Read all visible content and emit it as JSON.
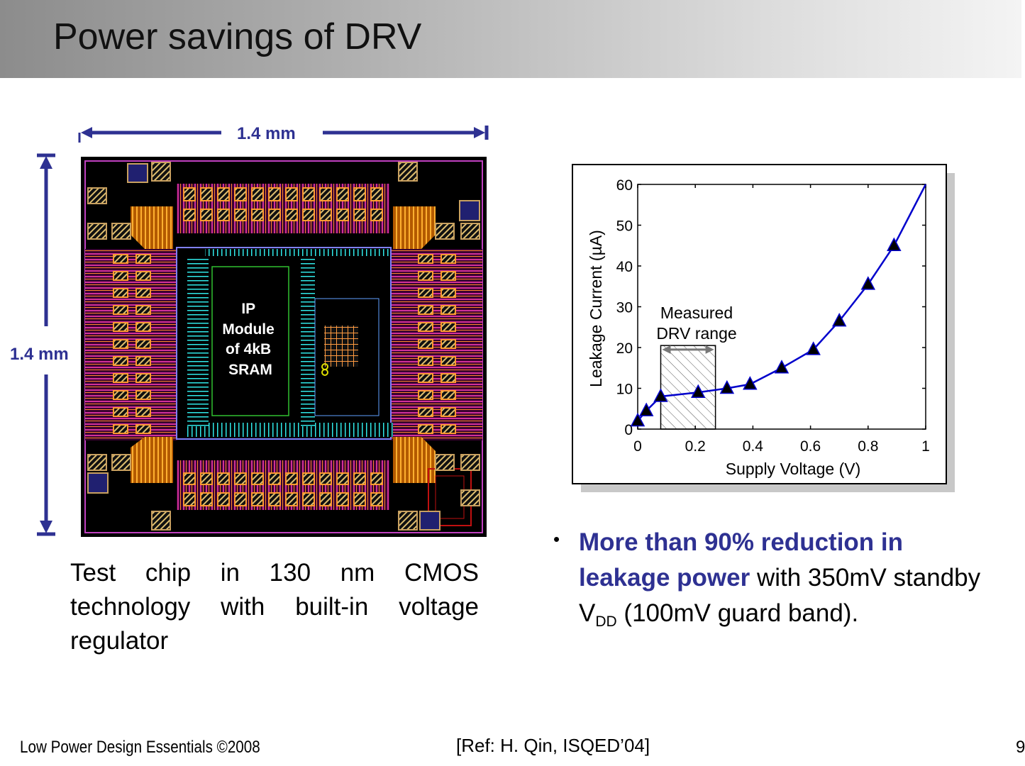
{
  "slide": {
    "title": "Power savings of DRV",
    "width_label": "1.4 mm",
    "height_label": "1.4 mm",
    "chip_module_label": [
      "IP",
      "Module",
      "of 4kB",
      "SRAM"
    ],
    "chip_caption": "Test chip in 130 nm CMOS technology with built-in voltage regulator",
    "bullet": {
      "highlight": "More than 90% reduction in leakage power",
      "text_1": " with 350mV standby V",
      "subscript": "DD",
      "text_2": " (100mV guard band)."
    },
    "footer_left": "Low Power Design Essentials ©2008",
    "footer_ref": "[Ref: H. Qin, ISQED’04]",
    "page_number": "9"
  },
  "chart_data": {
    "type": "line",
    "xlabel": "Supply Voltage (V)",
    "ylabel": "Leakage Current (µA)",
    "xlim": [
      0,
      1
    ],
    "ylim": [
      0,
      60
    ],
    "xticks": [
      "0",
      "0.2",
      "0.4",
      "0.6",
      "0.8",
      "1"
    ],
    "yticks": [
      "0",
      "10",
      "20",
      "30",
      "40",
      "50",
      "60"
    ],
    "series": [
      {
        "x": [
          0.0,
          0.03,
          0.08,
          0.21,
          0.31,
          0.39,
          0.5,
          0.61,
          0.7,
          0.8,
          0.89
        ],
        "y": [
          2,
          4.5,
          8,
          9,
          10,
          11,
          15,
          19.5,
          26.5,
          35.5,
          45
        ],
        "marker": "triangle",
        "color": "#0000cc",
        "curve_end": [
          1.0,
          60
        ]
      }
    ],
    "annotation": {
      "lines": [
        "Measured",
        "DRV range"
      ],
      "x_range": [
        0.08,
        0.27
      ]
    },
    "grid": false
  },
  "colors": {
    "accent": "#2e3192",
    "series": "#0000cc",
    "chip_background": "#000000"
  }
}
